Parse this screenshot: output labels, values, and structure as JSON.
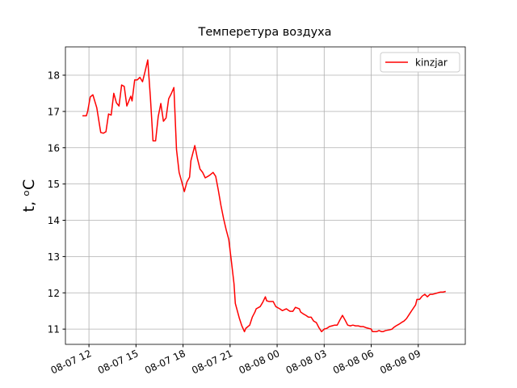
{
  "chart_data": {
    "type": "line",
    "title": "Темперетура воздуха",
    "y_label": "t, ᵒC",
    "legend": "upper right",
    "grid": true,
    "xlim": [
      "08-07 10:30",
      "08-08 12:00"
    ],
    "xticks": [
      "08-07 12",
      "08-07 15",
      "08-07 18",
      "08-07 21",
      "08-08 00",
      "08-08 03",
      "08-08 06",
      "08-08 09"
    ],
    "ylim": [
      10.58,
      18.78
    ],
    "yticks": [
      11,
      12,
      13,
      14,
      15,
      16,
      17,
      18
    ],
    "x": [
      "08-07 11:35",
      "08-07 11:50",
      "08-07 11:55",
      "08-07 12:05",
      "08-07 12:15",
      "08-07 12:30",
      "08-07 12:45",
      "08-07 12:55",
      "08-07 13:05",
      "08-07 13:15",
      "08-07 13:25",
      "08-07 13:35",
      "08-07 13:45",
      "08-07 13:55",
      "08-07 14:05",
      "08-07 14:15",
      "08-07 14:25",
      "08-07 14:40",
      "08-07 14:45",
      "08-07 14:55",
      "08-07 15:05",
      "08-07 15:15",
      "08-07 15:25",
      "08-07 15:35",
      "08-07 15:45",
      "08-07 15:55",
      "08-07 16:05",
      "08-07 16:15",
      "08-07 16:25",
      "08-07 16:35",
      "08-07 16:45",
      "08-07 16:55",
      "08-07 17:05",
      "08-07 17:15",
      "08-07 17:25",
      "08-07 17:35",
      "08-07 17:45",
      "08-07 17:55",
      "08-07 18:05",
      "08-07 18:15",
      "08-07 18:25",
      "08-07 18:30",
      "08-07 18:45",
      "08-07 18:55",
      "08-07 19:05",
      "08-07 19:15",
      "08-07 19:25",
      "08-07 19:35",
      "08-07 19:45",
      "08-07 19:55",
      "08-07 20:05",
      "08-07 20:15",
      "08-07 20:25",
      "08-07 20:35",
      "08-07 20:45",
      "08-07 20:55",
      "08-07 21:05",
      "08-07 21:15",
      "08-07 21:20",
      "08-07 21:35",
      "08-07 21:45",
      "08-07 21:55",
      "08-07 22:00",
      "08-07 22:15",
      "08-07 22:25",
      "08-07 22:35",
      "08-07 22:40",
      "08-07 22:55",
      "08-07 23:05",
      "08-07 23:15",
      "08-07 23:20",
      "08-07 23:30",
      "08-07 23:45",
      "08-07 23:55",
      "08-08 00:05",
      "08-08 00:10",
      "08-08 00:20",
      "08-08 00:35",
      "08-08 00:45",
      "08-08 00:50",
      "08-08 01:00",
      "08-08 01:10",
      "08-08 01:25",
      "08-08 01:30",
      "08-08 01:40",
      "08-08 01:50",
      "08-08 02:00",
      "08-08 02:10",
      "08-08 02:20",
      "08-08 02:30",
      "08-08 02:40",
      "08-08 02:50",
      "08-08 03:00",
      "08-08 03:10",
      "08-08 03:20",
      "08-08 03:30",
      "08-08 03:40",
      "08-08 03:50",
      "08-08 04:00",
      "08-08 04:10",
      "08-08 04:20",
      "08-08 04:30",
      "08-08 04:40",
      "08-08 04:50",
      "08-08 05:00",
      "08-08 05:10",
      "08-08 05:20",
      "08-08 05:30",
      "08-08 05:40",
      "08-08 05:50",
      "08-08 06:00",
      "08-08 06:05",
      "08-08 06:20",
      "08-08 06:30",
      "08-08 06:40",
      "08-08 06:45",
      "08-08 06:55",
      "08-08 07:10",
      "08-08 07:20",
      "08-08 07:25",
      "08-08 07:35",
      "08-08 07:45",
      "08-08 08:00",
      "08-08 08:05",
      "08-08 08:15",
      "08-08 08:25",
      "08-08 08:35",
      "08-08 08:50",
      "08-08 08:55",
      "08-08 09:05",
      "08-08 09:15",
      "08-08 09:25",
      "08-08 09:35",
      "08-08 09:45",
      "08-08 09:55",
      "08-08 10:05",
      "08-08 10:15",
      "08-08 10:25",
      "08-08 10:35",
      "08-08 10:45"
    ],
    "series": [
      {
        "name": "kinzjar",
        "color": "#ff0000",
        "values": [
          16.88,
          16.88,
          17.0,
          17.4,
          17.46,
          17.1,
          16.42,
          16.4,
          16.44,
          16.93,
          16.9,
          17.5,
          17.24,
          17.15,
          17.73,
          17.69,
          17.15,
          17.42,
          17.29,
          17.87,
          17.87,
          17.94,
          17.82,
          18.11,
          18.42,
          17.4,
          16.19,
          16.19,
          16.86,
          17.22,
          16.73,
          16.82,
          17.35,
          17.49,
          17.66,
          15.95,
          15.32,
          15.06,
          14.79,
          15.06,
          15.19,
          15.64,
          16.06,
          15.7,
          15.41,
          15.32,
          15.17,
          15.21,
          15.26,
          15.32,
          15.21,
          14.83,
          14.41,
          14.05,
          13.74,
          13.47,
          12.87,
          12.25,
          11.71,
          11.31,
          11.09,
          10.93,
          11.02,
          11.11,
          11.33,
          11.47,
          11.56,
          11.62,
          11.74,
          11.89,
          11.78,
          11.76,
          11.76,
          11.62,
          11.58,
          11.56,
          11.51,
          11.56,
          11.51,
          11.49,
          11.49,
          11.6,
          11.56,
          11.47,
          11.42,
          11.38,
          11.33,
          11.33,
          11.22,
          11.18,
          11.04,
          10.93,
          11.0,
          11.02,
          11.07,
          11.09,
          11.11,
          11.11,
          11.25,
          11.38,
          11.25,
          11.11,
          11.09,
          11.11,
          11.09,
          11.09,
          11.07,
          11.07,
          11.04,
          11.02,
          11.0,
          10.93,
          10.93,
          10.96,
          10.93,
          10.93,
          10.96,
          10.98,
          11.0,
          11.04,
          11.09,
          11.13,
          11.2,
          11.22,
          11.29,
          11.4,
          11.51,
          11.67,
          11.82,
          11.82,
          11.91,
          11.96,
          11.89,
          11.96,
          11.96,
          11.98,
          12.0,
          12.02,
          12.02,
          12.04
        ]
      }
    ]
  }
}
